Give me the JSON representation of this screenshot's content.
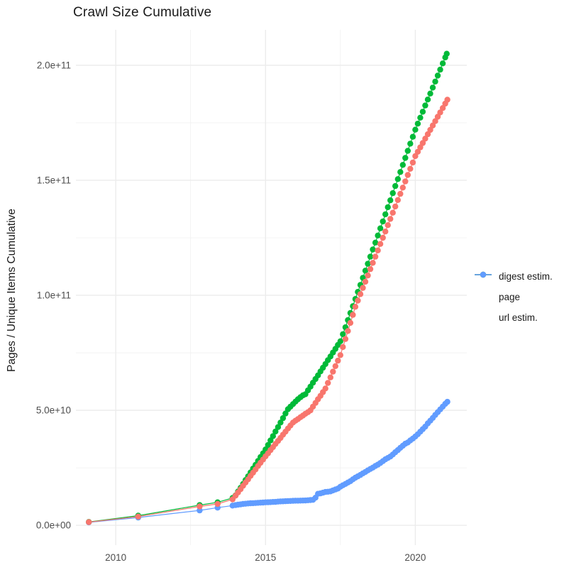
{
  "title": "Crawl Size Cumulative",
  "axes": {
    "y_label": "Pages / Unique Items Cumulative",
    "x_label": "",
    "y_ticks": [
      {
        "label": "0.0e+00",
        "value": 0
      },
      {
        "label": "5.0e+10",
        "value": 50
      },
      {
        "label": "1.0e+11",
        "value": 100
      },
      {
        "label": "1.5e+11",
        "value": 150
      },
      {
        "label": "2.0e+11",
        "value": 200
      }
    ],
    "y_minor_values": [
      25,
      75,
      125,
      175
    ],
    "x_ticks": [
      {
        "label": "2010",
        "value": 2010
      },
      {
        "label": "2015",
        "value": 2015
      },
      {
        "label": "2020",
        "value": 2020
      }
    ],
    "x_minor_values": [
      2012.5,
      2017.5
    ]
  },
  "legend": {
    "items": [
      {
        "label": "digest estim.",
        "color": "#F8766D"
      },
      {
        "label": "page",
        "color": "#00BA38"
      },
      {
        "label": "url estim.",
        "color": "#619CFF"
      }
    ]
  },
  "colors": {
    "background": "#FFFFFF",
    "grid_major": "#EBEBEB",
    "grid_minor": "#F0F0F0",
    "tick_text": "#4D4D4D",
    "title_text": "#1A1A1A",
    "digest": "#F8766D",
    "page": "#00BA38",
    "url": "#619CFF"
  },
  "chart_data": {
    "type": "line",
    "title": "Crawl Size Cumulative",
    "xlabel": "",
    "ylabel": "Pages / Unique Items Cumulative",
    "value_unit": "1e9 (values below are billions of pages / unique items)",
    "x_domain": [
      2008.67,
      2021.72
    ],
    "y_domain_e9": [
      -8.6,
      215.4
    ],
    "grid": "on",
    "legend_position": "right",
    "marker": "point",
    "series": [
      {
        "name": "url estim.",
        "color": "#619CFF",
        "points": [
          [
            2009.1,
            1.3
          ],
          [
            2010.75,
            3.4
          ],
          [
            2012.8,
            6.5
          ],
          [
            2013.4,
            7.7
          ],
          [
            2013.9,
            8.6
          ],
          [
            2014.0,
            8.8
          ],
          [
            2014.083,
            9.0
          ],
          [
            2014.167,
            9.1
          ],
          [
            2014.25,
            9.3
          ],
          [
            2014.333,
            9.4
          ],
          [
            2014.417,
            9.5
          ],
          [
            2014.5,
            9.6
          ],
          [
            2014.583,
            9.65
          ],
          [
            2014.667,
            9.7
          ],
          [
            2014.75,
            9.8
          ],
          [
            2014.833,
            9.85
          ],
          [
            2014.917,
            9.9
          ],
          [
            2015.0,
            10.0
          ],
          [
            2015.083,
            10.05
          ],
          [
            2015.167,
            10.1
          ],
          [
            2015.25,
            10.15
          ],
          [
            2015.333,
            10.2
          ],
          [
            2015.417,
            10.3
          ],
          [
            2015.5,
            10.4
          ],
          [
            2015.583,
            10.45
          ],
          [
            2015.667,
            10.5
          ],
          [
            2015.75,
            10.55
          ],
          [
            2015.833,
            10.6
          ],
          [
            2015.917,
            10.65
          ],
          [
            2016.0,
            10.7
          ],
          [
            2016.083,
            10.72
          ],
          [
            2016.167,
            10.75
          ],
          [
            2016.25,
            10.78
          ],
          [
            2016.333,
            10.8
          ],
          [
            2016.417,
            10.9
          ],
          [
            2016.5,
            11.0
          ],
          [
            2016.583,
            11.1
          ],
          [
            2016.667,
            12.0
          ],
          [
            2016.75,
            13.7
          ],
          [
            2016.833,
            13.9
          ],
          [
            2016.917,
            14.2
          ],
          [
            2017.0,
            14.5
          ],
          [
            2017.083,
            14.6
          ],
          [
            2017.167,
            14.75
          ],
          [
            2017.25,
            15.2
          ],
          [
            2017.333,
            15.6
          ],
          [
            2017.417,
            16.0
          ],
          [
            2017.5,
            16.8
          ],
          [
            2017.583,
            17.4
          ],
          [
            2017.667,
            18.0
          ],
          [
            2017.75,
            18.6
          ],
          [
            2017.833,
            19.2
          ],
          [
            2017.917,
            20.0
          ],
          [
            2018.0,
            20.7
          ],
          [
            2018.083,
            21.3
          ],
          [
            2018.167,
            21.9
          ],
          [
            2018.25,
            22.6
          ],
          [
            2018.333,
            23.2
          ],
          [
            2018.417,
            23.9
          ],
          [
            2018.5,
            24.5
          ],
          [
            2018.583,
            25.1
          ],
          [
            2018.667,
            25.8
          ],
          [
            2018.75,
            26.4
          ],
          [
            2018.833,
            27.1
          ],
          [
            2018.917,
            27.9
          ],
          [
            2019.0,
            28.7
          ],
          [
            2019.083,
            29.3
          ],
          [
            2019.167,
            29.9
          ],
          [
            2019.25,
            30.8
          ],
          [
            2019.333,
            31.8
          ],
          [
            2019.417,
            32.7
          ],
          [
            2019.5,
            33.7
          ],
          [
            2019.583,
            34.6
          ],
          [
            2019.667,
            35.5
          ],
          [
            2019.75,
            36.0
          ],
          [
            2019.833,
            36.9
          ],
          [
            2019.917,
            37.7
          ],
          [
            2020.0,
            38.6
          ],
          [
            2020.083,
            39.6
          ],
          [
            2020.167,
            40.7
          ],
          [
            2020.25,
            41.8
          ],
          [
            2020.333,
            42.9
          ],
          [
            2020.417,
            44.3
          ],
          [
            2020.5,
            45.5
          ],
          [
            2020.583,
            46.7
          ],
          [
            2020.667,
            48.0
          ],
          [
            2020.75,
            49.2
          ],
          [
            2020.833,
            50.4
          ],
          [
            2020.917,
            51.6
          ],
          [
            2021.0,
            52.8
          ],
          [
            2021.07,
            53.7
          ]
        ]
      },
      {
        "name": "page",
        "color": "#00BA38",
        "points": [
          [
            2009.1,
            1.5
          ],
          [
            2010.75,
            4.2
          ],
          [
            2012.8,
            8.8
          ],
          [
            2013.4,
            10.0
          ],
          [
            2013.9,
            11.9
          ],
          [
            2014.0,
            13.0
          ],
          [
            2014.083,
            14.7
          ],
          [
            2014.167,
            16.3
          ],
          [
            2014.25,
            18.0
          ],
          [
            2014.333,
            19.7
          ],
          [
            2014.417,
            21.3
          ],
          [
            2014.5,
            23.0
          ],
          [
            2014.583,
            24.7
          ],
          [
            2014.667,
            26.3
          ],
          [
            2014.75,
            28.0
          ],
          [
            2014.833,
            29.7
          ],
          [
            2014.917,
            31.3
          ],
          [
            2015.0,
            33.0
          ],
          [
            2015.083,
            34.9
          ],
          [
            2015.167,
            36.9
          ],
          [
            2015.25,
            38.8
          ],
          [
            2015.333,
            40.8
          ],
          [
            2015.417,
            42.7
          ],
          [
            2015.5,
            44.7
          ],
          [
            2015.583,
            46.6
          ],
          [
            2015.667,
            48.6
          ],
          [
            2015.75,
            50.5
          ],
          [
            2015.833,
            51.6
          ],
          [
            2015.917,
            52.7
          ],
          [
            2016.0,
            53.8
          ],
          [
            2016.083,
            54.8
          ],
          [
            2016.167,
            55.7
          ],
          [
            2016.25,
            56.5
          ],
          [
            2016.333,
            57.0
          ],
          [
            2016.417,
            58.7
          ],
          [
            2016.5,
            60.3
          ],
          [
            2016.583,
            62.0
          ],
          [
            2016.667,
            63.6
          ],
          [
            2016.75,
            65.2
          ],
          [
            2016.833,
            66.9
          ],
          [
            2016.917,
            68.5
          ],
          [
            2017.0,
            70.1
          ],
          [
            2017.083,
            71.8
          ],
          [
            2017.167,
            73.4
          ],
          [
            2017.25,
            75.1
          ],
          [
            2017.333,
            76.7
          ],
          [
            2017.417,
            78.4
          ],
          [
            2017.5,
            80.0
          ],
          [
            2017.583,
            83.1
          ],
          [
            2017.667,
            86.1
          ],
          [
            2017.75,
            89.2
          ],
          [
            2017.833,
            92.3
          ],
          [
            2017.917,
            95.3
          ],
          [
            2018.0,
            98.4
          ],
          [
            2018.083,
            101.5
          ],
          [
            2018.167,
            104.5
          ],
          [
            2018.25,
            107.6
          ],
          [
            2018.333,
            110.7
          ],
          [
            2018.417,
            113.7
          ],
          [
            2018.5,
            116.8
          ],
          [
            2018.583,
            119.9
          ],
          [
            2018.667,
            122.9
          ],
          [
            2018.75,
            126.0
          ],
          [
            2018.833,
            129.1
          ],
          [
            2018.917,
            132.1
          ],
          [
            2019.0,
            135.2
          ],
          [
            2019.083,
            138.3
          ],
          [
            2019.167,
            141.3
          ],
          [
            2019.25,
            144.4
          ],
          [
            2019.333,
            147.5
          ],
          [
            2019.417,
            150.5
          ],
          [
            2019.5,
            153.6
          ],
          [
            2019.583,
            156.7
          ],
          [
            2019.667,
            159.7
          ],
          [
            2019.75,
            162.8
          ],
          [
            2019.833,
            165.9
          ],
          [
            2019.917,
            168.9
          ],
          [
            2020.0,
            172.0
          ],
          [
            2020.083,
            174.6
          ],
          [
            2020.167,
            177.2
          ],
          [
            2020.25,
            179.8
          ],
          [
            2020.333,
            182.5
          ],
          [
            2020.417,
            185.1
          ],
          [
            2020.5,
            187.7
          ],
          [
            2020.583,
            190.3
          ],
          [
            2020.667,
            192.9
          ],
          [
            2020.75,
            195.5
          ],
          [
            2020.833,
            198.1
          ],
          [
            2020.917,
            200.8
          ],
          [
            2021.0,
            203.4
          ],
          [
            2021.05,
            205.0
          ]
        ]
      },
      {
        "name": "digest estim.",
        "color": "#F8766D",
        "points": [
          [
            2009.1,
            1.4
          ],
          [
            2010.75,
            3.8
          ],
          [
            2012.8,
            8.2
          ],
          [
            2013.4,
            9.3
          ],
          [
            2013.9,
            11.3
          ],
          [
            2014.0,
            12.9
          ],
          [
            2014.083,
            14.3
          ],
          [
            2014.167,
            15.7
          ],
          [
            2014.25,
            17.2
          ],
          [
            2014.333,
            18.6
          ],
          [
            2014.417,
            20.0
          ],
          [
            2014.5,
            21.5
          ],
          [
            2014.583,
            22.9
          ],
          [
            2014.667,
            24.3
          ],
          [
            2014.75,
            25.8
          ],
          [
            2014.833,
            27.2
          ],
          [
            2014.917,
            28.6
          ],
          [
            2015.0,
            30.0
          ],
          [
            2015.083,
            31.3
          ],
          [
            2015.167,
            32.7
          ],
          [
            2015.25,
            34.0
          ],
          [
            2015.333,
            35.4
          ],
          [
            2015.417,
            36.7
          ],
          [
            2015.5,
            38.0
          ],
          [
            2015.583,
            39.4
          ],
          [
            2015.667,
            40.7
          ],
          [
            2015.75,
            42.1
          ],
          [
            2015.833,
            43.4
          ],
          [
            2015.917,
            44.7
          ],
          [
            2016.0,
            45.5
          ],
          [
            2016.083,
            46.2
          ],
          [
            2016.167,
            47.0
          ],
          [
            2016.25,
            47.7
          ],
          [
            2016.333,
            48.5
          ],
          [
            2016.417,
            49.2
          ],
          [
            2016.5,
            50.0
          ],
          [
            2016.583,
            51.6
          ],
          [
            2016.667,
            53.2
          ],
          [
            2016.75,
            54.8
          ],
          [
            2016.833,
            56.3
          ],
          [
            2016.917,
            57.9
          ],
          [
            2017.0,
            59.5
          ],
          [
            2017.083,
            61.9
          ],
          [
            2017.167,
            64.3
          ],
          [
            2017.25,
            66.8
          ],
          [
            2017.333,
            69.2
          ],
          [
            2017.417,
            71.6
          ],
          [
            2017.5,
            74.0
          ],
          [
            2017.583,
            77.5
          ],
          [
            2017.667,
            81.0
          ],
          [
            2017.75,
            84.5
          ],
          [
            2017.833,
            88.0
          ],
          [
            2017.917,
            91.5
          ],
          [
            2018.0,
            95.0
          ],
          [
            2018.083,
            97.7
          ],
          [
            2018.167,
            100.5
          ],
          [
            2018.25,
            103.2
          ],
          [
            2018.333,
            105.9
          ],
          [
            2018.417,
            108.6
          ],
          [
            2018.5,
            111.4
          ],
          [
            2018.583,
            114.1
          ],
          [
            2018.667,
            116.8
          ],
          [
            2018.75,
            119.5
          ],
          [
            2018.833,
            122.3
          ],
          [
            2018.917,
            125.0
          ],
          [
            2019.0,
            127.7
          ],
          [
            2019.083,
            130.5
          ],
          [
            2019.167,
            133.2
          ],
          [
            2019.25,
            135.9
          ],
          [
            2019.333,
            138.6
          ],
          [
            2019.417,
            141.4
          ],
          [
            2019.5,
            144.1
          ],
          [
            2019.583,
            146.8
          ],
          [
            2019.667,
            149.5
          ],
          [
            2019.75,
            152.3
          ],
          [
            2019.833,
            155.0
          ],
          [
            2019.917,
            157.7
          ],
          [
            2020.0,
            160.5
          ],
          [
            2020.083,
            162.4
          ],
          [
            2020.167,
            164.3
          ],
          [
            2020.25,
            166.2
          ],
          [
            2020.333,
            168.1
          ],
          [
            2020.417,
            170.0
          ],
          [
            2020.5,
            171.9
          ],
          [
            2020.583,
            173.8
          ],
          [
            2020.667,
            175.7
          ],
          [
            2020.75,
            177.6
          ],
          [
            2020.833,
            179.5
          ],
          [
            2020.917,
            181.4
          ],
          [
            2021.0,
            183.3
          ],
          [
            2021.07,
            185.0
          ]
        ]
      }
    ]
  }
}
